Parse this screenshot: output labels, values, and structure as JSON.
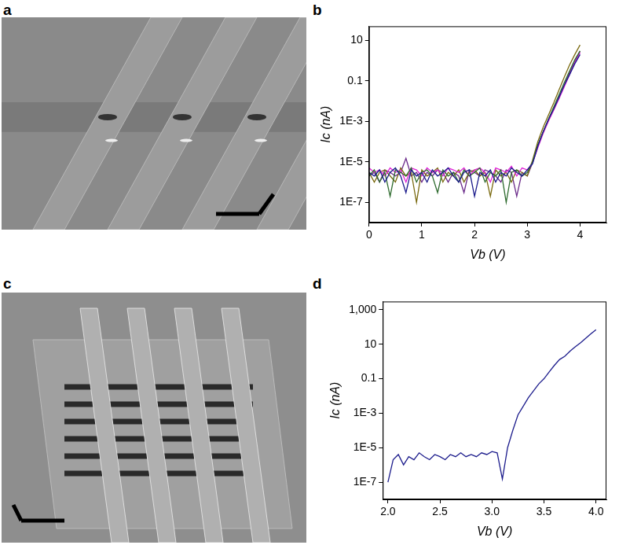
{
  "panel_labels": [
    "a",
    "b",
    "c",
    "d"
  ],
  "chart_data": [
    {
      "type": "line",
      "x_label": "Vb (V)",
      "y_label": "Ic (nA)",
      "log": "y",
      "grid": false,
      "xlim": [
        0,
        4.5
      ],
      "xticks": [
        0,
        1,
        2,
        3,
        4
      ],
      "ylim": [
        1e-08,
        50
      ],
      "yticks": [
        {
          "value": 1e-07,
          "label": "1E-7"
        },
        {
          "value": 1e-05,
          "label": "1E-5"
        },
        {
          "value": 0.001,
          "label": "1E-3"
        },
        0.1,
        10
      ],
      "x": [
        0,
        0.1,
        0.2,
        0.3,
        0.4,
        0.5,
        0.6,
        0.7,
        0.8,
        0.9,
        1.0,
        1.1,
        1.2,
        1.3,
        1.4,
        1.5,
        1.6,
        1.7,
        1.8,
        1.9,
        2.0,
        2.1,
        2.2,
        2.3,
        2.4,
        2.5,
        2.6,
        2.7,
        2.8,
        2.9,
        3.0,
        3.1,
        3.2,
        3.3,
        3.4,
        3.5,
        3.6,
        3.7,
        3.8,
        3.9,
        4.0
      ],
      "series": [
        {
          "color": "#1c1c8c",
          "values": [
            3e-06,
            2e-06,
            4e-06,
            1e-06,
            3e-06,
            5e-06,
            2e-06,
            3e-07,
            4e-06,
            2e-06,
            3e-06,
            1e-06,
            4e-06,
            2e-06,
            3e-06,
            5e-06,
            2e-06,
            1e-06,
            3e-06,
            4e-06,
            2e-07,
            3e-06,
            2e-06,
            4e-06,
            1e-06,
            3e-06,
            2e-06,
            5e-06,
            3e-06,
            2e-06,
            4e-06,
            8e-06,
            6e-05,
            0.0003,
            0.0012,
            0.004,
            0.015,
            0.06,
            0.2,
            0.7,
            2
          ]
        },
        {
          "color": "#2e6b2e",
          "values": [
            2e-06,
            4e-06,
            1e-06,
            3e-06,
            2e-07,
            4e-06,
            3e-06,
            2e-06,
            5e-06,
            1e-06,
            3e-06,
            4e-06,
            2e-06,
            3e-07,
            4e-06,
            2e-06,
            3e-06,
            1e-06,
            4e-06,
            2e-06,
            3e-06,
            5e-06,
            1e-06,
            3e-06,
            2e-06,
            4e-06,
            1e-07,
            3e-06,
            4e-06,
            2e-06,
            3e-06,
            1e-05,
            7e-05,
            0.0003,
            0.0013,
            0.005,
            0.02,
            0.08,
            0.3,
            1.1,
            3
          ]
        },
        {
          "color": "#e020d8",
          "values": [
            5e-06,
            3e-06,
            4e-06,
            2e-06,
            5e-06,
            3e-06,
            4e-06,
            1e-06,
            5e-06,
            4e-06,
            2e-06,
            5e-06,
            3e-06,
            4e-06,
            2e-06,
            5e-06,
            4e-06,
            3e-06,
            5e-06,
            2e-06,
            4e-06,
            5e-06,
            3e-06,
            1e-06,
            5e-06,
            4e-06,
            3e-06,
            6e-06,
            2e-06,
            5e-06,
            4e-06,
            9e-06,
            5e-05,
            0.00025,
            0.001,
            0.0035,
            0.013,
            0.05,
            0.2,
            0.8,
            2.5
          ]
        },
        {
          "color": "#7a6a10",
          "values": [
            3e-06,
            1e-06,
            3e-06,
            4e-06,
            2e-06,
            1e-06,
            5e-06,
            2e-06,
            3e-06,
            1e-07,
            4e-06,
            2e-06,
            3e-06,
            5e-06,
            1e-06,
            3e-06,
            2e-06,
            4e-06,
            1e-06,
            3e-06,
            4e-06,
            2e-06,
            3e-06,
            2e-07,
            4e-06,
            2e-06,
            3e-06,
            1e-06,
            4e-06,
            3e-06,
            2e-06,
            1.2e-05,
            0.0001,
            0.0005,
            0.002,
            0.008,
            0.035,
            0.15,
            0.6,
            2,
            6
          ]
        },
        {
          "color": "#6a2a8a",
          "values": [
            2e-06,
            3e-06,
            1e-06,
            4e-06,
            3e-06,
            2e-06,
            3e-06,
            1.5e-05,
            2e-06,
            3e-06,
            1e-06,
            3e-06,
            2e-06,
            4e-06,
            3e-06,
            1e-06,
            3e-06,
            2e-06,
            3e-07,
            4e-06,
            3e-06,
            2e-06,
            4e-06,
            3e-06,
            2e-06,
            1e-06,
            4e-06,
            3e-06,
            2e-07,
            3e-06,
            2e-06,
            9e-06,
            6e-05,
            0.0003,
            0.0011,
            0.004,
            0.016,
            0.06,
            0.25,
            0.9,
            3
          ]
        }
      ]
    },
    {
      "type": "line",
      "x_label": "Vb (V)",
      "y_label": "Ic (nA)",
      "log": "y",
      "grid": false,
      "xlim": [
        1.95,
        4.1
      ],
      "xticks": [
        {
          "value": 2,
          "label": "2.0"
        },
        2.5,
        {
          "value": 3,
          "label": "3.0"
        },
        3.5,
        {
          "value": 4,
          "label": "4.0"
        }
      ],
      "ylim": [
        1e-08,
        3000
      ],
      "yticks": [
        {
          "value": 1e-07,
          "label": "1E-7"
        },
        {
          "value": 1e-05,
          "label": "1E-5"
        },
        {
          "value": 0.001,
          "label": "1E-3"
        },
        0.1,
        10,
        {
          "value": 1000,
          "label": "1,000"
        }
      ],
      "x": [
        2.0,
        2.05,
        2.1,
        2.15,
        2.2,
        2.25,
        2.3,
        2.35,
        2.4,
        2.45,
        2.5,
        2.55,
        2.6,
        2.65,
        2.7,
        2.75,
        2.8,
        2.85,
        2.9,
        2.95,
        3.0,
        3.05,
        3.1,
        3.15,
        3.2,
        3.25,
        3.3,
        3.35,
        3.4,
        3.45,
        3.5,
        3.55,
        3.6,
        3.65,
        3.7,
        3.75,
        3.8,
        3.85,
        3.9,
        3.95,
        4.0
      ],
      "series": [
        {
          "color": "#1c1c8c",
          "values": [
            1e-07,
            2e-06,
            4e-06,
            1e-06,
            3e-06,
            2e-06,
            5e-06,
            3e-06,
            2e-06,
            4e-06,
            3e-06,
            2e-06,
            4e-06,
            3e-06,
            5e-06,
            3e-06,
            4e-06,
            3e-06,
            5e-06,
            4e-06,
            6e-06,
            5e-06,
            1.5e-07,
            1e-05,
            0.0001,
            0.0008,
            0.0025,
            0.008,
            0.02,
            0.05,
            0.1,
            0.25,
            0.6,
            1.3,
            2,
            4,
            7,
            12,
            22,
            40,
            70
          ]
        }
      ]
    }
  ]
}
